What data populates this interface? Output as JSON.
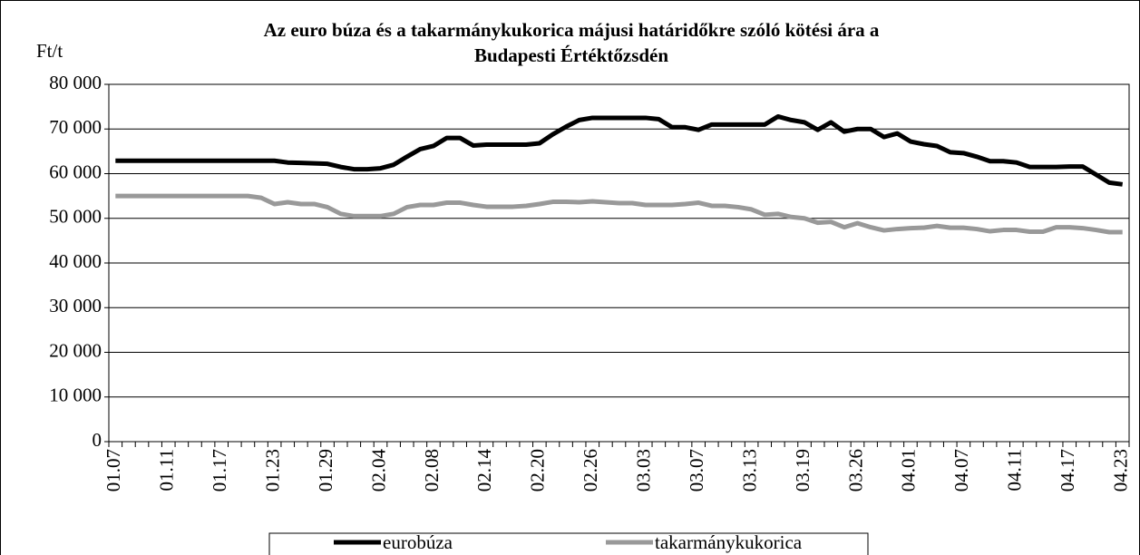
{
  "chart_data": {
    "type": "line",
    "title": [
      "Az euro búza és a takarmánykukorica májusi határidőkre szóló kötési ára a",
      "Budapesti Értéktőzsdén"
    ],
    "ylabel": "Ft/t",
    "categories": [
      "01.07",
      null,
      null,
      null,
      "01.11",
      null,
      null,
      null,
      "01.17",
      null,
      null,
      null,
      "01.23",
      null,
      null,
      null,
      "01.29",
      null,
      null,
      null,
      "02.04",
      null,
      null,
      null,
      "02.08",
      null,
      null,
      null,
      "02.14",
      null,
      null,
      null,
      "02.20",
      null,
      null,
      null,
      "02.26",
      null,
      null,
      null,
      "03.03",
      null,
      null,
      null,
      "03.07",
      null,
      null,
      null,
      "03.13",
      null,
      null,
      null,
      "03.19",
      null,
      null,
      null,
      "03.26",
      null,
      null,
      null,
      "04.01",
      null,
      null,
      null,
      "04.07",
      null,
      null,
      null,
      "04.11",
      null,
      null,
      null,
      "04.17",
      null,
      null,
      null,
      "04.23"
    ],
    "series": [
      {
        "name": "eurobúza",
        "color": "#000000",
        "values": [
          62900,
          62900,
          62900,
          62900,
          62900,
          62900,
          62900,
          62900,
          62900,
          62900,
          62900,
          62900,
          62900,
          62500,
          62400,
          62300,
          62200,
          61500,
          61000,
          61000,
          61200,
          62000,
          63800,
          65500,
          66200,
          68000,
          68000,
          66300,
          66500,
          66500,
          66500,
          66500,
          66800,
          68800,
          70500,
          72000,
          72500,
          72500,
          72500,
          72500,
          72500,
          72200,
          70400,
          70400,
          69800,
          71000,
          71000,
          71000,
          71000,
          71000,
          72800,
          72000,
          71500,
          69800,
          71500,
          69400,
          70000,
          70000,
          68200,
          69000,
          67200,
          66600,
          66200,
          64800,
          64600,
          63800,
          62800,
          62800,
          62500,
          61500,
          61500,
          61500,
          61600,
          61600,
          59800,
          58000,
          57600
        ]
      },
      {
        "name": "takarmánykukorica",
        "color": "#999999",
        "values": [
          55000,
          55000,
          55000,
          55000,
          55000,
          55000,
          55000,
          55000,
          55000,
          55000,
          55000,
          54600,
          53200,
          53600,
          53200,
          53200,
          52500,
          51000,
          50500,
          50500,
          50500,
          51000,
          52500,
          53000,
          53000,
          53500,
          53500,
          53000,
          52600,
          52600,
          52600,
          52800,
          53200,
          53700,
          53700,
          53600,
          53800,
          53600,
          53400,
          53400,
          53000,
          53000,
          53000,
          53200,
          53500,
          52800,
          52800,
          52500,
          52000,
          50800,
          51000,
          50300,
          50000,
          49000,
          49200,
          48000,
          48900,
          48000,
          47300,
          47600,
          47800,
          47900,
          48300,
          47900,
          47900,
          47600,
          47100,
          47400,
          47400,
          47000,
          47000,
          48000,
          48000,
          47800,
          47400,
          46900,
          46900
        ]
      }
    ],
    "ylim": [
      0,
      80000
    ],
    "yticks": [
      0,
      {
        "value": 10000,
        "label": "10 000"
      },
      {
        "value": 20000,
        "label": "20 000"
      },
      {
        "value": 30000,
        "label": "30 000"
      },
      {
        "value": 40000,
        "label": "40 000"
      },
      {
        "value": 50000,
        "label": "50 000"
      },
      {
        "value": 60000,
        "label": "60 000"
      },
      {
        "value": 70000,
        "label": "70 000"
      },
      {
        "value": 80000,
        "label": "80 000"
      }
    ],
    "grid": true,
    "legend": "bottom"
  }
}
